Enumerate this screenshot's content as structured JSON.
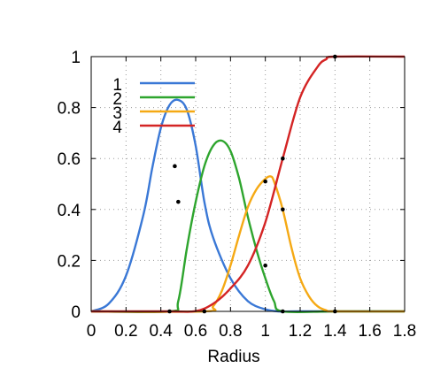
{
  "chart_data": {
    "type": "line",
    "title": "",
    "xlabel": "Radius",
    "ylabel": "",
    "xlim": [
      0,
      1.8
    ],
    "ylim": [
      0,
      1
    ],
    "x_ticks": [
      "0",
      "0.2",
      "0.4",
      "0.6",
      "0.8",
      "1",
      "1.2",
      "1.4",
      "1.6",
      "1.8"
    ],
    "y_ticks": [
      "0",
      "0.2",
      "0.4",
      "0.6",
      "0.8",
      "1"
    ],
    "grid": "dotted",
    "legend_position": "top-left",
    "series": [
      {
        "name": "1",
        "color": "#3a78d6",
        "x": [
          0,
          0.1,
          0.2,
          0.3,
          0.35,
          0.4,
          0.45,
          0.5,
          0.55,
          0.6,
          0.65,
          0.7,
          0.8,
          0.9,
          1.0,
          1.08,
          1.2,
          1.4,
          1.8
        ],
        "y": [
          0,
          0.03,
          0.14,
          0.38,
          0.56,
          0.72,
          0.81,
          0.83,
          0.79,
          0.65,
          0.43,
          0.29,
          0.13,
          0.04,
          0.008,
          0,
          0,
          0,
          0
        ]
      },
      {
        "name": "2",
        "color": "#2ea52e",
        "x": [
          0,
          0.45,
          0.5,
          0.55,
          0.6,
          0.65,
          0.7,
          0.75,
          0.8,
          0.85,
          0.9,
          0.95,
          1.0,
          1.05,
          1.1,
          1.4,
          1.8
        ],
        "y": [
          0,
          0,
          0.04,
          0.25,
          0.43,
          0.57,
          0.65,
          0.67,
          0.63,
          0.52,
          0.37,
          0.24,
          0.13,
          0.04,
          0,
          0,
          0
        ]
      },
      {
        "name": "3",
        "color": "#f5a914",
        "x": [
          0,
          0.65,
          0.7,
          0.75,
          0.8,
          0.85,
          0.9,
          0.95,
          1.0,
          1.03,
          1.05,
          1.1,
          1.15,
          1.2,
          1.25,
          1.3,
          1.35,
          1.4,
          1.8
        ],
        "y": [
          0,
          0,
          0.02,
          0.08,
          0.18,
          0.3,
          0.41,
          0.48,
          0.52,
          0.53,
          0.51,
          0.4,
          0.25,
          0.13,
          0.06,
          0.02,
          0.004,
          0,
          0
        ]
      },
      {
        "name": "4",
        "color": "#d42424",
        "x": [
          0,
          0.45,
          0.6,
          0.7,
          0.8,
          0.9,
          1.0,
          1.1,
          1.2,
          1.3,
          1.35,
          1.4,
          1.8
        ],
        "y": [
          0,
          0,
          0.001,
          0.03,
          0.09,
          0.18,
          0.35,
          0.6,
          0.84,
          0.96,
          0.99,
          1.0,
          1.0
        ]
      }
    ],
    "markers": {
      "x": [
        0.45,
        0.48,
        0.5,
        0.65,
        1.0,
        1.1,
        1.4
      ],
      "y_points": [
        [
          0.45,
          0
        ],
        [
          0.48,
          0.57
        ],
        [
          0.5,
          0.43
        ],
        [
          0.65,
          0
        ],
        [
          1.0,
          0.51
        ],
        [
          1.0,
          0.18
        ],
        [
          1.1,
          0.4
        ],
        [
          1.1,
          0.6
        ],
        [
          1.1,
          0
        ],
        [
          1.4,
          0
        ],
        [
          1.4,
          1.0
        ]
      ]
    }
  }
}
